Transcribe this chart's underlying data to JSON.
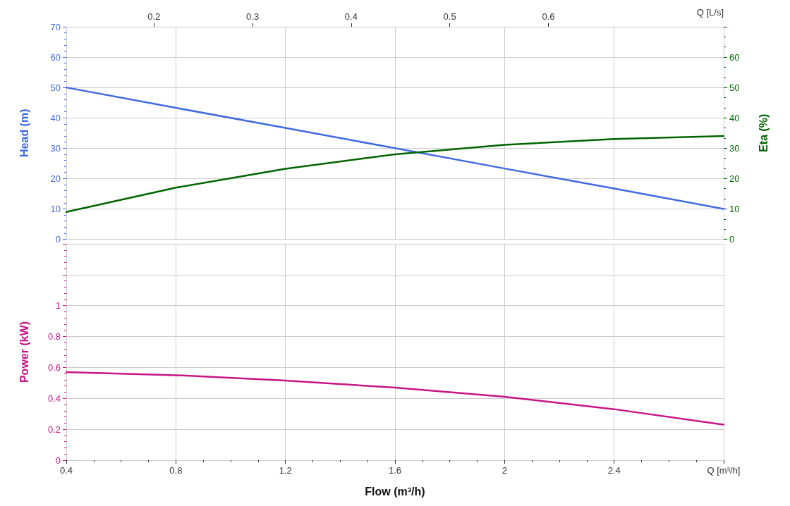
{
  "chart_data": [
    {
      "type": "line",
      "ylabel": "Head (m)",
      "y2label": "Eta (%)",
      "x2label": "Q [L/s]",
      "tick_labels": "y",
      "xlim": [
        0.4,
        2.8
      ],
      "xticks": [
        0.4,
        0.8,
        1.2,
        1.6,
        2,
        2.4,
        2.8
      ],
      "x2lim": [
        0.1111,
        0.7778
      ],
      "x2ticks": [
        0.2,
        0.3,
        0.4,
        0.5,
        0.6
      ],
      "ylim": [
        0,
        70
      ],
      "yticks": [
        0,
        10,
        20,
        30,
        40,
        50,
        60,
        70
      ],
      "y2lim": [
        0,
        70
      ],
      "y2ticks": [
        0,
        10,
        20,
        30,
        40,
        50,
        60,
        {
          "value": 70,
          "label": null
        }
      ],
      "grid": true,
      "marker": "none",
      "line_style": "solid",
      "series": [
        {
          "axis": "y",
          "color": "#4169e1",
          "x": [
            0.4,
            0.8,
            1.2,
            1.6,
            2,
            2.4,
            2.8
          ],
          "values": [
            50,
            43.3,
            36.7,
            30,
            23.3,
            16.7,
            10
          ]
        },
        {
          "axis": "y2",
          "color": "#006400",
          "x": [
            0.4,
            0.8,
            1.2,
            1.6,
            2,
            2.4,
            2.8
          ],
          "values": [
            9,
            17,
            23.2,
            28,
            31.1,
            33,
            34
          ]
        }
      ]
    },
    {
      "type": "line",
      "xlabel": "Flow (m³/h)",
      "ylabel": "Power (kW)",
      "xlim": [
        0.4,
        2.8
      ],
      "xticks": [
        0.4,
        0.8,
        1.2,
        1.6,
        2,
        2.4,
        {
          "value": 2.8,
          "label": "Q [m³/h]"
        }
      ],
      "ylim": [
        0,
        1.4
      ],
      "yticks": [
        0,
        0.2,
        0.4,
        0.6,
        0.8,
        1,
        {
          "value": 1.2,
          "label": null
        },
        {
          "value": 1.4,
          "label": null
        }
      ],
      "grid": true,
      "marker": "none",
      "line_style": "solid",
      "series": [
        {
          "color": "#c71585",
          "x": [
            0.4,
            0.8,
            1.2,
            1.6,
            2,
            2.4,
            2.8
          ],
          "values": [
            0.57,
            0.55,
            0.515,
            0.47,
            0.41,
            0.33,
            0.23
          ]
        }
      ]
    }
  ]
}
